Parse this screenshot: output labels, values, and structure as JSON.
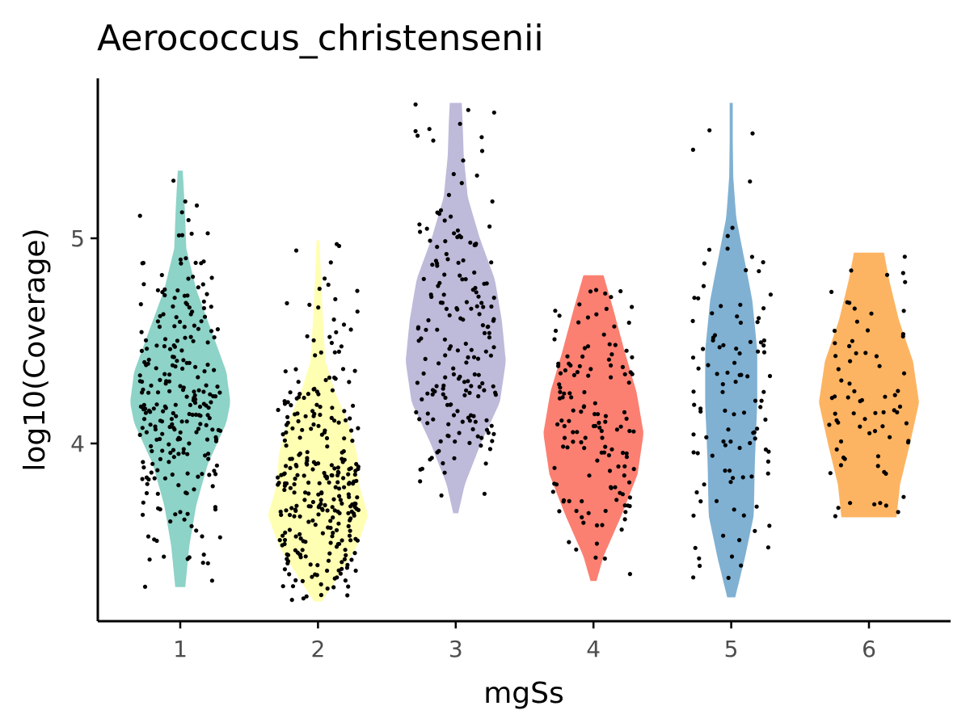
{
  "chart_data": {
    "type": "violin",
    "title": "Aerococcus_christensenii",
    "xlabel": "mgSs",
    "ylabel": "log10(Coverage)",
    "categories": [
      "1",
      "2",
      "3",
      "4",
      "5",
      "6"
    ],
    "y_ticks": [
      4,
      5
    ],
    "ylim": [
      3.13,
      5.78
    ],
    "grid": false,
    "legend": "none",
    "colors": [
      "#8dd3c7",
      "#ffffb3",
      "#bebada",
      "#fb8072",
      "#80b1d3",
      "#fdb462"
    ],
    "series": [
      {
        "category": "1",
        "min": 3.3,
        "max": 5.33,
        "median": 4.2,
        "n_points": 260,
        "density": [
          [
            3.3,
            0.1
          ],
          [
            3.5,
            0.18
          ],
          [
            3.7,
            0.32
          ],
          [
            3.9,
            0.55
          ],
          [
            4.1,
            0.92
          ],
          [
            4.2,
            1.0
          ],
          [
            4.35,
            0.92
          ],
          [
            4.55,
            0.62
          ],
          [
            4.75,
            0.32
          ],
          [
            4.95,
            0.12
          ],
          [
            5.15,
            0.09
          ],
          [
            5.33,
            0.05
          ]
        ]
      },
      {
        "category": "2",
        "min": 3.23,
        "max": 4.99,
        "median": 3.7,
        "n_points": 300,
        "density": [
          [
            3.23,
            0.08
          ],
          [
            3.35,
            0.4
          ],
          [
            3.5,
            0.78
          ],
          [
            3.65,
            1.0
          ],
          [
            3.8,
            0.82
          ],
          [
            3.95,
            0.78
          ],
          [
            4.1,
            0.6
          ],
          [
            4.25,
            0.34
          ],
          [
            4.4,
            0.15
          ],
          [
            4.6,
            0.1
          ],
          [
            4.8,
            0.06
          ],
          [
            4.99,
            0.03
          ]
        ]
      },
      {
        "category": "3",
        "min": 3.66,
        "max": 5.66,
        "median": 4.5,
        "n_points": 190,
        "density": [
          [
            3.66,
            0.05
          ],
          [
            3.8,
            0.18
          ],
          [
            4.0,
            0.5
          ],
          [
            4.2,
            0.88
          ],
          [
            4.4,
            1.0
          ],
          [
            4.6,
            0.92
          ],
          [
            4.8,
            0.78
          ],
          [
            5.0,
            0.48
          ],
          [
            5.2,
            0.24
          ],
          [
            5.4,
            0.16
          ],
          [
            5.55,
            0.14
          ],
          [
            5.66,
            0.12
          ]
        ]
      },
      {
        "category": "4",
        "min": 3.33,
        "max": 4.82,
        "median": 4.05,
        "n_points": 140,
        "density": [
          [
            3.33,
            0.06
          ],
          [
            3.45,
            0.2
          ],
          [
            3.65,
            0.56
          ],
          [
            3.85,
            0.88
          ],
          [
            4.05,
            1.0
          ],
          [
            4.25,
            0.86
          ],
          [
            4.45,
            0.62
          ],
          [
            4.65,
            0.4
          ],
          [
            4.82,
            0.2
          ]
        ]
      },
      {
        "category": "5",
        "min": 3.25,
        "max": 5.66,
        "median": 4.05,
        "n_points": 110,
        "density": [
          [
            3.25,
            0.08
          ],
          [
            3.45,
            0.28
          ],
          [
            3.65,
            0.45
          ],
          [
            3.9,
            0.47
          ],
          [
            4.2,
            0.52
          ],
          [
            4.45,
            0.52
          ],
          [
            4.7,
            0.42
          ],
          [
            4.9,
            0.26
          ],
          [
            5.1,
            0.1
          ],
          [
            5.3,
            0.04
          ],
          [
            5.5,
            0.03
          ],
          [
            5.66,
            0.03
          ]
        ]
      },
      {
        "category": "6",
        "min": 3.64,
        "max": 4.93,
        "median": 4.2,
        "n_points": 75,
        "density": [
          [
            3.64,
            0.55
          ],
          [
            3.8,
            0.62
          ],
          [
            4.0,
            0.82
          ],
          [
            4.2,
            1.0
          ],
          [
            4.4,
            0.88
          ],
          [
            4.6,
            0.6
          ],
          [
            4.8,
            0.4
          ],
          [
            4.93,
            0.3
          ]
        ]
      }
    ]
  }
}
